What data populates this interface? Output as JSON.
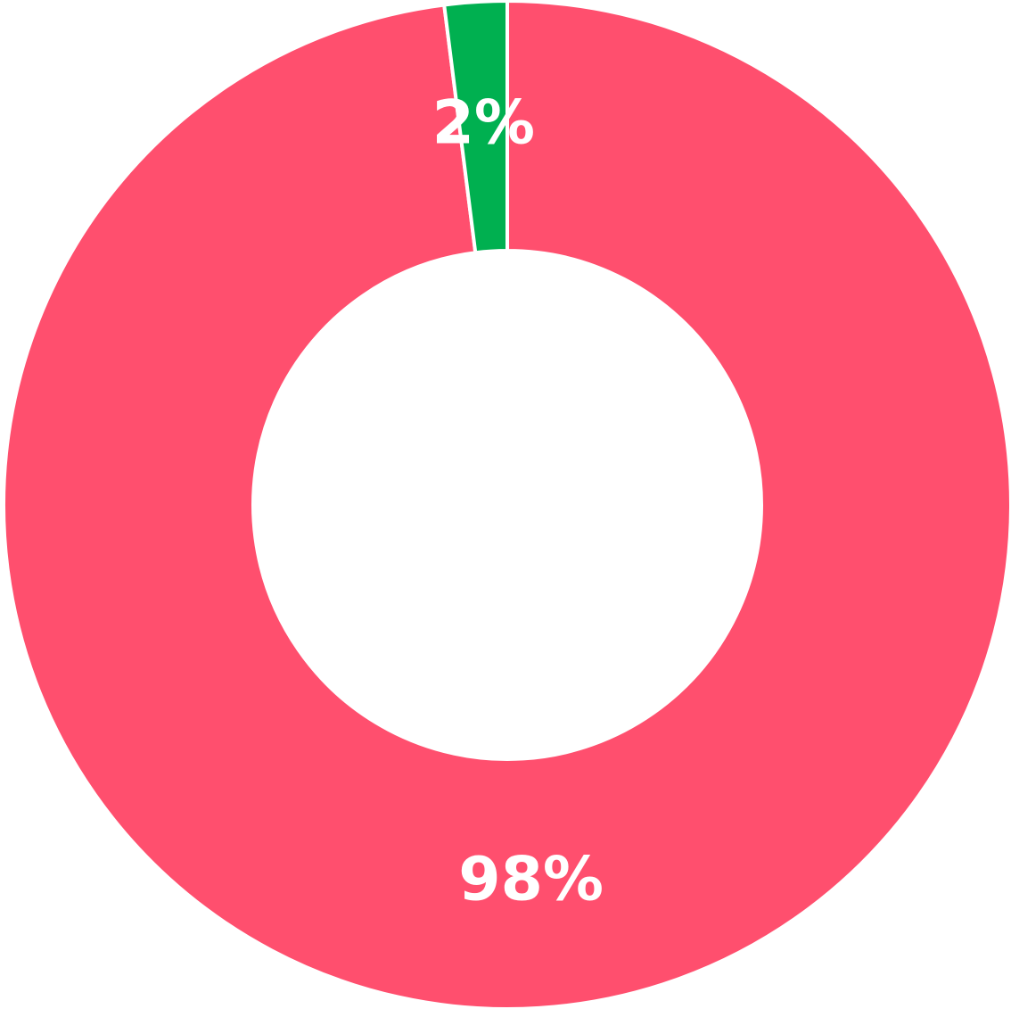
{
  "chart_data": {
    "type": "donut",
    "values": [
      98,
      2
    ],
    "value_labels": [
      "98%",
      "2%"
    ],
    "colors": [
      "#ff4f6e",
      "#00b050"
    ]
  }
}
